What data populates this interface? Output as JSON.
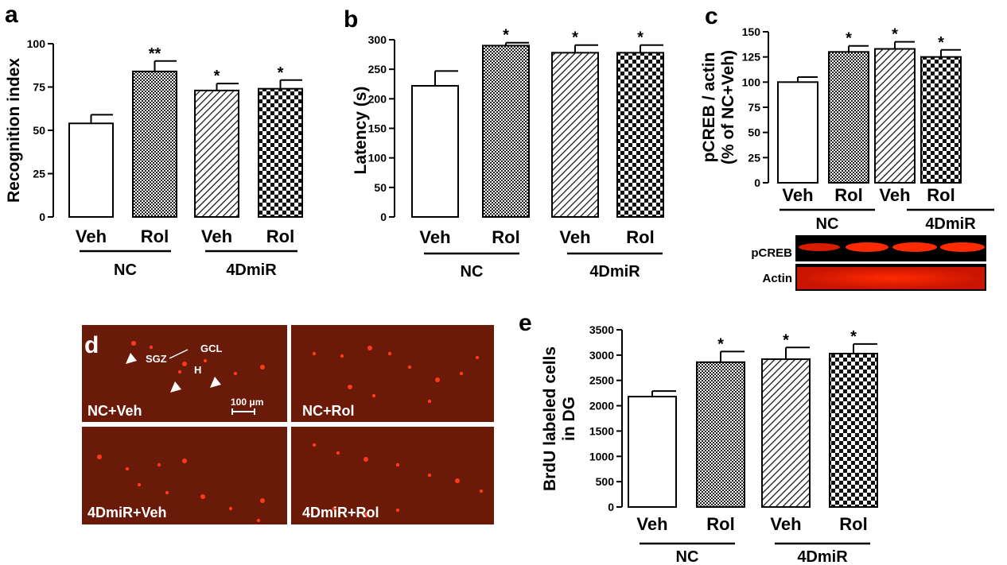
{
  "chart_data": [
    {
      "panel": "a",
      "type": "bar",
      "categories": [
        "Veh",
        "Rol",
        "Veh",
        "Rol"
      ],
      "groups": [
        {
          "label": "NC",
          "members": [
            0,
            1
          ]
        },
        {
          "label": "4DmiR",
          "members": [
            2,
            3
          ]
        }
      ],
      "values": [
        54,
        84,
        73,
        74
      ],
      "errors": [
        5,
        6,
        4,
        5
      ],
      "annotations": [
        "",
        "**",
        "*",
        "*"
      ],
      "patterns": [
        "white",
        "dense-check",
        "diagonal",
        "checker"
      ],
      "ylabel": "Recognition index",
      "ylim": [
        0,
        100
      ],
      "yticks": [
        0,
        25,
        50,
        75,
        100
      ]
    },
    {
      "panel": "b",
      "type": "bar",
      "categories": [
        "Veh",
        "Rol",
        "Veh",
        "Rol"
      ],
      "groups": [
        {
          "label": "NC",
          "members": [
            0,
            1
          ]
        },
        {
          "label": "4DmiR",
          "members": [
            2,
            3
          ]
        }
      ],
      "values": [
        222,
        290,
        278,
        278
      ],
      "errors": [
        25,
        5,
        13,
        13
      ],
      "annotations": [
        "",
        "*",
        "*",
        "*"
      ],
      "patterns": [
        "white",
        "dense-check",
        "diagonal",
        "checker"
      ],
      "ylabel": "Latency (s)",
      "ylim": [
        0,
        300
      ],
      "yticks": [
        0,
        50,
        100,
        150,
        200,
        250,
        300
      ]
    },
    {
      "panel": "c",
      "type": "bar",
      "categories": [
        "Veh",
        "Rol",
        "Veh",
        "Rol"
      ],
      "groups": [
        {
          "label": "NC",
          "members": [
            0,
            1
          ]
        },
        {
          "label": "4DmiR",
          "members": [
            2,
            3
          ]
        }
      ],
      "values": [
        100,
        130,
        133,
        125
      ],
      "errors": [
        5,
        6,
        7,
        7
      ],
      "annotations": [
        "",
        "*",
        "*",
        "*"
      ],
      "patterns": [
        "white",
        "dense-check",
        "diagonal",
        "checker"
      ],
      "ylabel": "pCREB / actin",
      "ylabel2": "(% of NC+Veh)",
      "ylim": [
        0,
        150
      ],
      "yticks": [
        0,
        25,
        50,
        75,
        100,
        125,
        150
      ],
      "blot_labels": [
        "pCREB",
        "Actin"
      ]
    },
    {
      "panel": "e",
      "type": "bar",
      "categories": [
        "Veh",
        "Rol",
        "Veh",
        "Rol"
      ],
      "groups": [
        {
          "label": "NC",
          "members": [
            0,
            1
          ]
        },
        {
          "label": "4DmiR",
          "members": [
            2,
            3
          ]
        }
      ],
      "values": [
        2180,
        2860,
        2920,
        3030
      ],
      "errors": [
        110,
        210,
        230,
        190
      ],
      "annotations": [
        "",
        "*",
        "*",
        "*"
      ],
      "patterns": [
        "white",
        "dense-check",
        "diagonal",
        "checker"
      ],
      "ylabel": "BrdU labeled cells",
      "ylabel2": "in DG",
      "ylim": [
        0,
        3500
      ],
      "yticks": [
        0,
        500,
        1000,
        1500,
        2000,
        2500,
        3000,
        3500
      ]
    }
  ],
  "panel_d": {
    "label": "d",
    "images": [
      "NC+Veh",
      "NC+Rol",
      "4DmiR+Veh",
      "4DmiR+Rol"
    ],
    "annotations": [
      "SGZ",
      "GCL",
      "H"
    ],
    "scale_bar": "100 μm"
  }
}
